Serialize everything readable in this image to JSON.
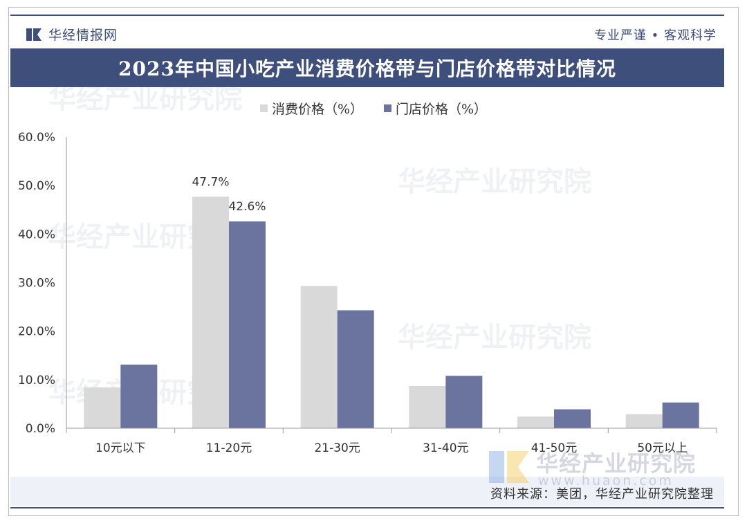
{
  "header": {
    "brand": "华经情报网",
    "slogan": "专业严谨 • 客观科学",
    "title": "2023年中国小吃产业消费价格带与门店价格带对比情况"
  },
  "watermark": {
    "name": "华经产业研究院",
    "url": "www.huaon.com"
  },
  "source": "资料来源：美团，华经产业研究院整理",
  "colors": {
    "navy": "#3e4f7c",
    "consumption": "#d9d9d9",
    "store": "#6a749f"
  },
  "chart_data": {
    "type": "bar",
    "categories": [
      "10元以下",
      "11-20元",
      "21-30元",
      "31-40元",
      "41-50元",
      "50元以上"
    ],
    "series": [
      {
        "name": "消费价格（%）",
        "values": [
          8.4,
          47.7,
          29.3,
          8.7,
          2.4,
          2.9
        ],
        "color": "#d9d9d9"
      },
      {
        "name": "门店价格（%）",
        "values": [
          13.1,
          42.6,
          24.3,
          10.8,
          3.9,
          5.3
        ],
        "color": "#6a749f"
      }
    ],
    "data_labels": [
      {
        "series": 0,
        "index": 1,
        "text": "47.7%"
      },
      {
        "series": 1,
        "index": 1,
        "text": "42.6%"
      }
    ],
    "yticks": [
      "0.0%",
      "10.0%",
      "20.0%",
      "30.0%",
      "40.0%",
      "50.0%",
      "60.0%"
    ],
    "ylim": [
      0,
      60
    ],
    "grid": false,
    "legend": "top-center"
  }
}
